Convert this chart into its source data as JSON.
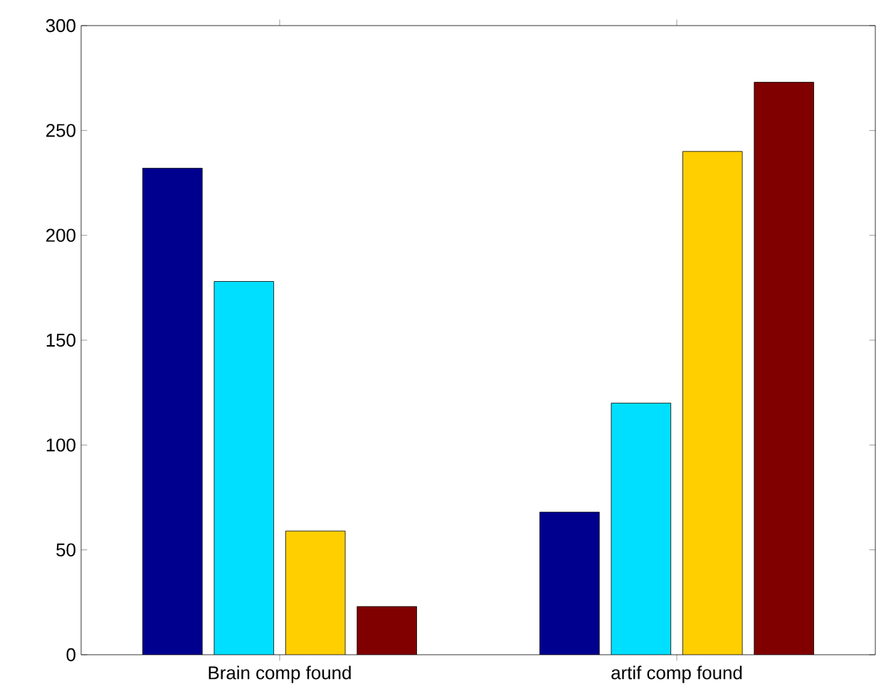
{
  "chart_data": {
    "type": "bar",
    "categories": [
      "Brain comp found",
      "artif comp found"
    ],
    "series": [
      {
        "color": "#00008f",
        "values": [
          232,
          68
        ]
      },
      {
        "color": "#00dfff",
        "values": [
          178,
          120
        ]
      },
      {
        "color": "#ffcf00",
        "values": [
          59,
          240
        ]
      },
      {
        "color": "#800000",
        "values": [
          23,
          273
        ]
      }
    ],
    "ylim": [
      0,
      300
    ],
    "yticks": [
      0,
      50,
      100,
      150,
      200,
      250,
      300
    ]
  }
}
